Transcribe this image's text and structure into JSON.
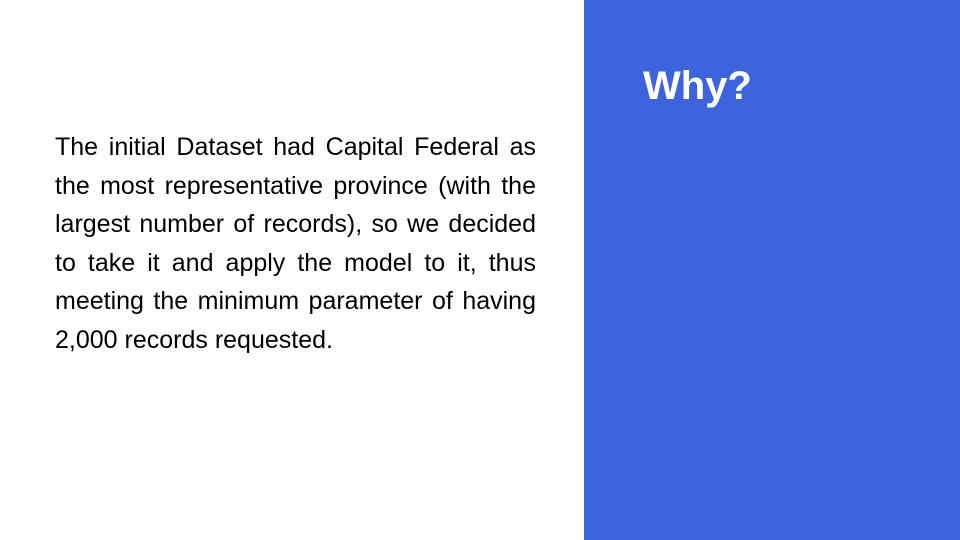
{
  "slide": {
    "title": "Why?",
    "body": "The initial Dataset had Capital Federal as the most representative province (with the largest number of records), so we decided to take it and apply the model to it, thus meeting the minimum parameter of having 2,000 records requested."
  },
  "colors": {
    "accent_panel": "#3d63dd",
    "title_text": "#ffffff",
    "body_text": "#000000",
    "background": "#ffffff"
  }
}
